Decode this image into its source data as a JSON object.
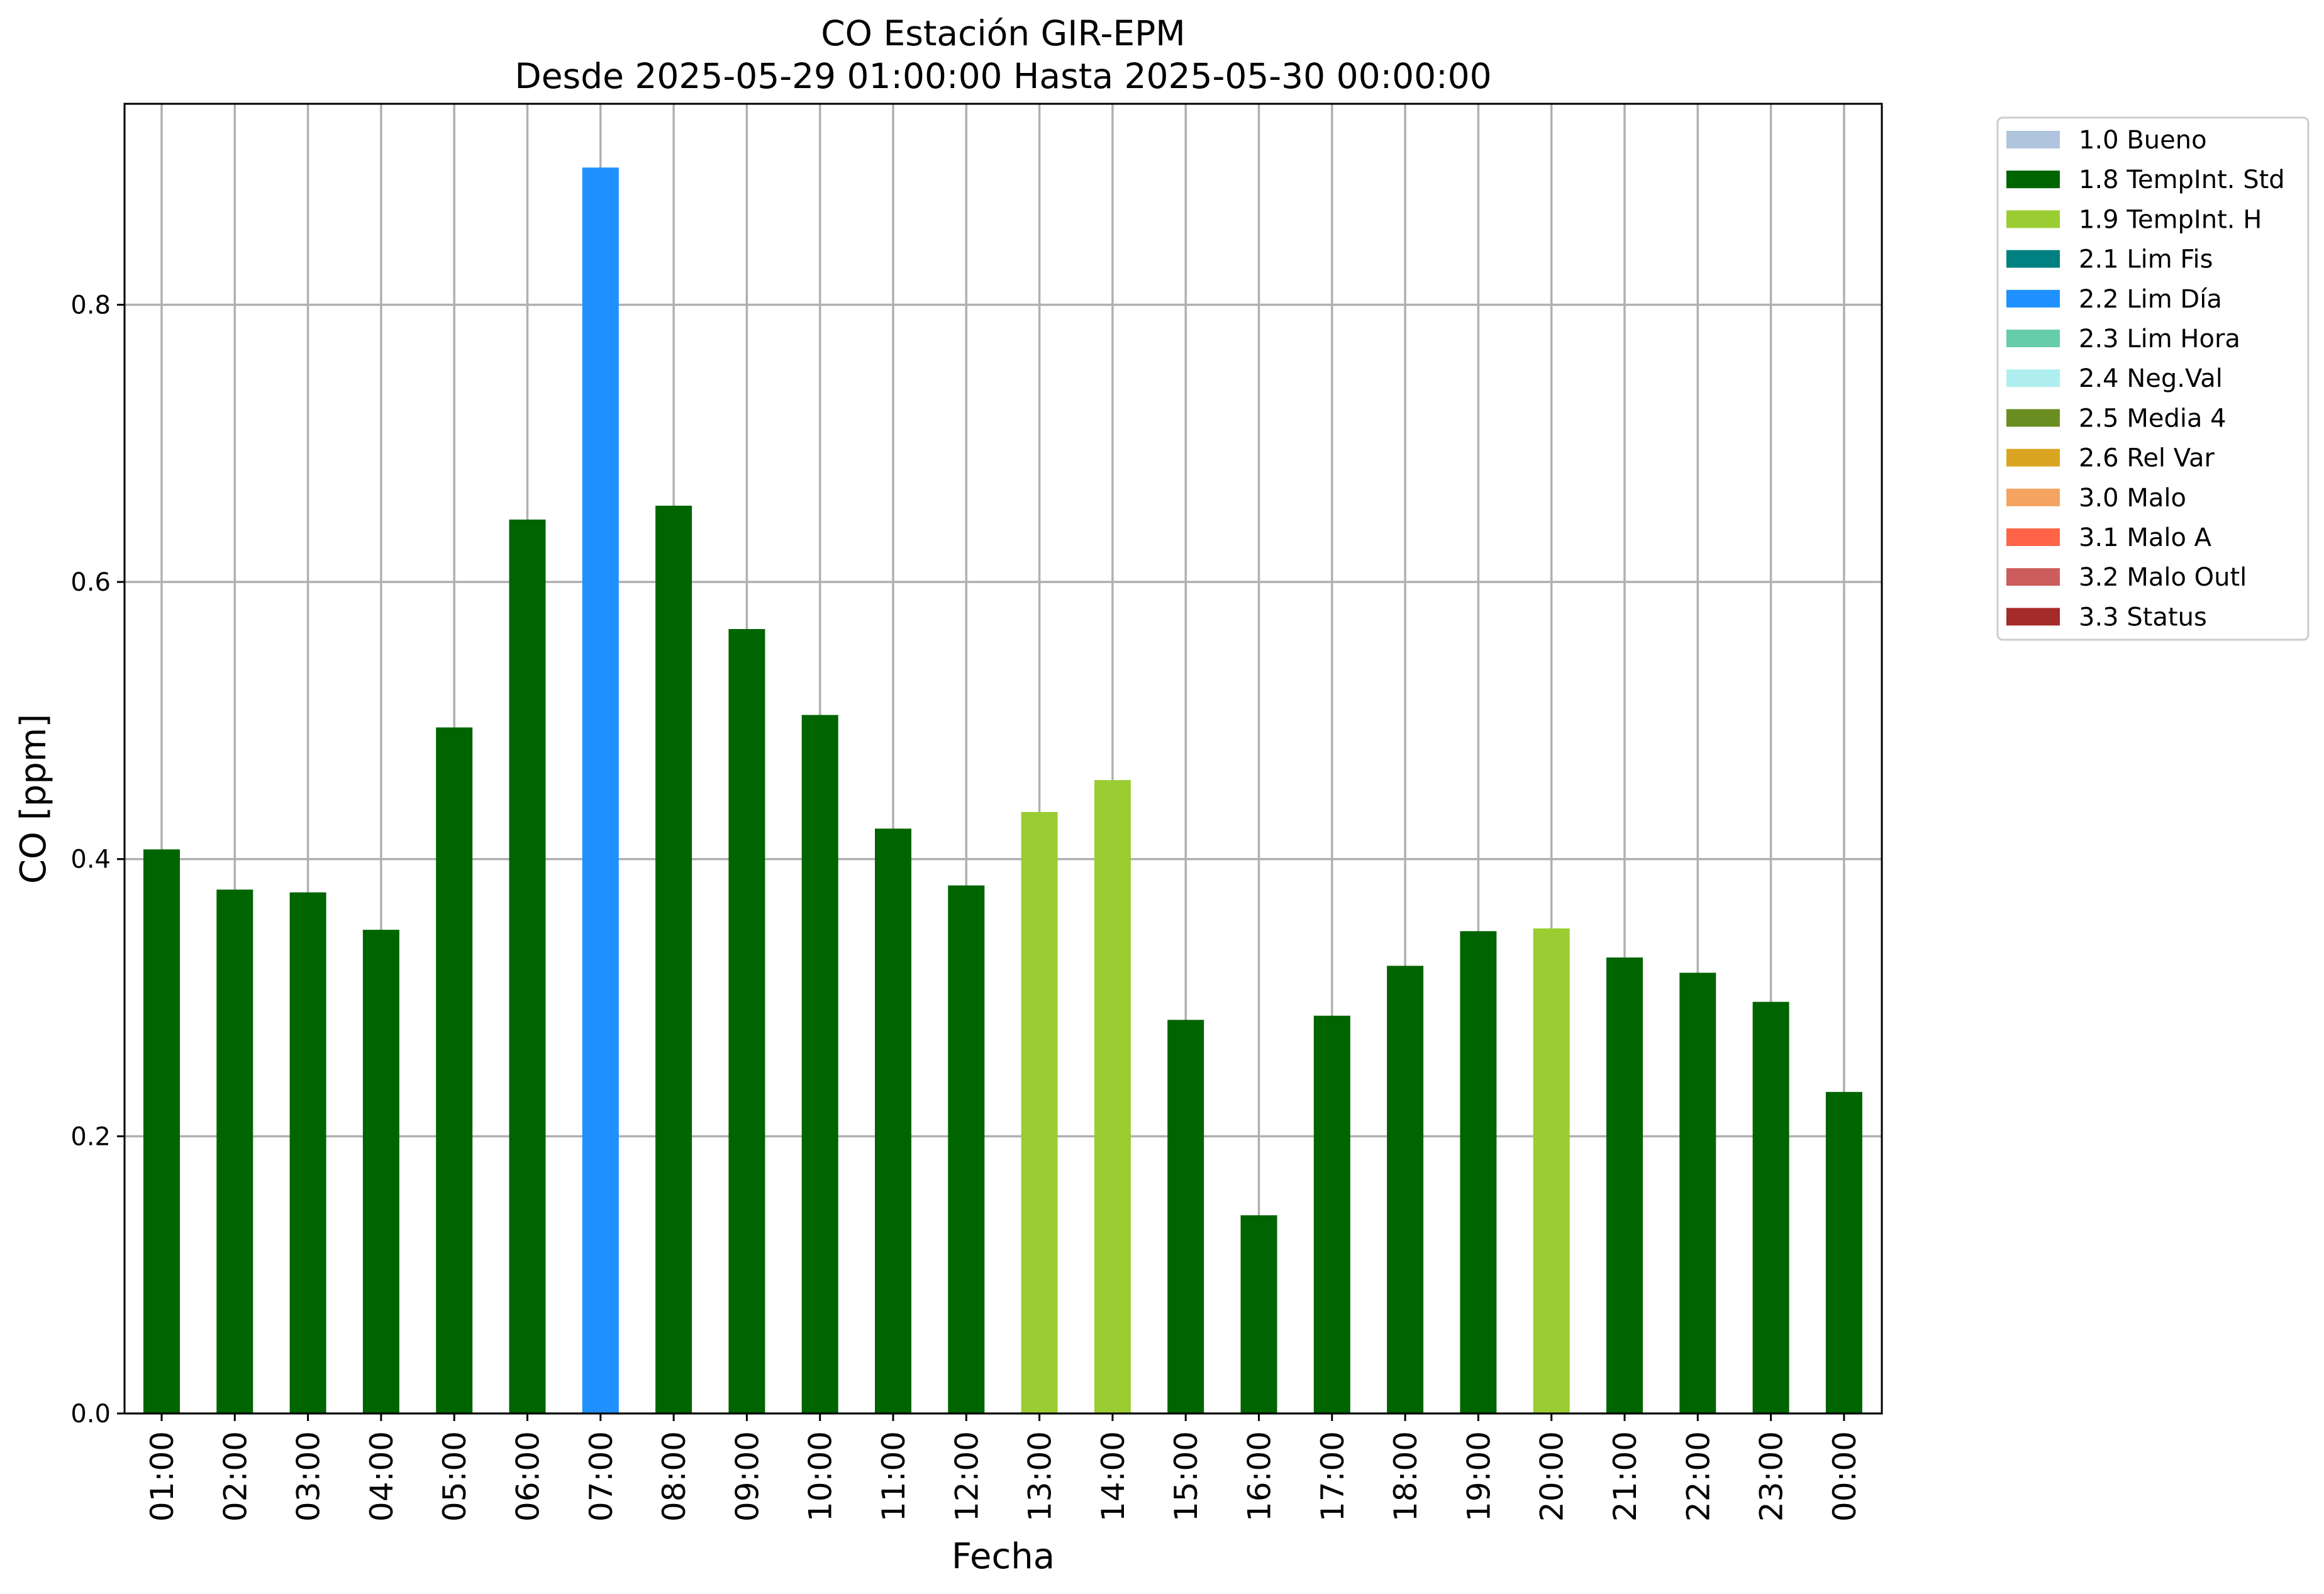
{
  "chart_data": {
    "type": "bar",
    "title": "CO Estación GIR-EPM",
    "subtitle": "Desde 2025-05-29 01:00:00 Hasta 2025-05-30 00:00:00",
    "xlabel": "Fecha",
    "ylabel": "CO [ppm]",
    "ylim": [
      0,
      0.945
    ],
    "yticks": [
      "0.0",
      "0.2",
      "0.4",
      "0.6",
      "0.8"
    ],
    "ytick_values": [
      0.0,
      0.2,
      0.4,
      0.6,
      0.8
    ],
    "grid": true,
    "legend_position": "outside-right",
    "categories": [
      "01:00",
      "02:00",
      "03:00",
      "04:00",
      "05:00",
      "06:00",
      "07:00",
      "08:00",
      "09:00",
      "10:00",
      "11:00",
      "12:00",
      "13:00",
      "14:00",
      "15:00",
      "16:00",
      "17:00",
      "18:00",
      "19:00",
      "20:00",
      "21:00",
      "22:00",
      "23:00",
      "00:00"
    ],
    "values": [
      0.407,
      0.378,
      0.376,
      0.349,
      0.495,
      0.645,
      0.899,
      0.655,
      0.566,
      0.504,
      0.422,
      0.381,
      0.434,
      0.457,
      0.284,
      0.143,
      0.287,
      0.323,
      0.348,
      0.35,
      0.329,
      0.318,
      0.297,
      0.232
    ],
    "flags": [
      "1.8",
      "1.8",
      "1.8",
      "1.8",
      "1.8",
      "1.8",
      "2.2",
      "1.8",
      "1.8",
      "1.8",
      "1.8",
      "1.8",
      "1.9",
      "1.9",
      "1.8",
      "1.8",
      "1.8",
      "1.8",
      "1.8",
      "1.9",
      "1.8",
      "1.8",
      "1.8",
      "1.8"
    ],
    "legend": [
      {
        "code": "1.0",
        "label": "1.0 Bueno",
        "color": "#B0C4DE"
      },
      {
        "code": "1.8",
        "label": "1.8 TempInt. Std",
        "color": "#006400"
      },
      {
        "code": "1.9",
        "label": "1.9 TempInt. H",
        "color": "#9ACD32"
      },
      {
        "code": "2.1",
        "label": "2.1 Lim Fis",
        "color": "#008080"
      },
      {
        "code": "2.2",
        "label": "2.2 Lim Día",
        "color": "#1E90FF"
      },
      {
        "code": "2.3",
        "label": "2.3 Lim Hora",
        "color": "#66CDAA"
      },
      {
        "code": "2.4",
        "label": "2.4 Neg.Val",
        "color": "#AFEEEE"
      },
      {
        "code": "2.5",
        "label": "2.5 Media 4",
        "color": "#6B8E23"
      },
      {
        "code": "2.6",
        "label": "2.6 Rel Var",
        "color": "#DAA520"
      },
      {
        "code": "3.0",
        "label": "3.0 Malo",
        "color": "#F4A460"
      },
      {
        "code": "3.1",
        "label": "3.1 Malo A",
        "color": "#FF6347"
      },
      {
        "code": "3.2",
        "label": "3.2 Malo Outl",
        "color": "#CD5C5C"
      },
      {
        "code": "3.3",
        "label": "3.3 Status",
        "color": "#A52A2A"
      }
    ]
  }
}
